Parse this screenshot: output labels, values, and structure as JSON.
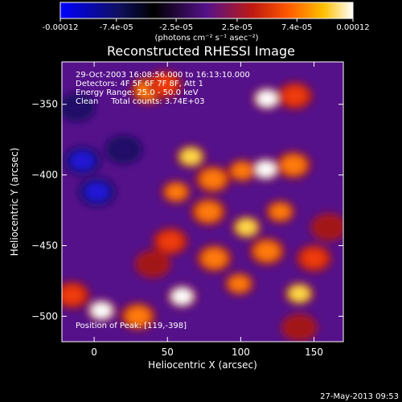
{
  "colorbar": {
    "ticks": [
      "-0.00012",
      "-7.4e-05",
      "-2.5e-05",
      "2.5e-05",
      "7.4e-05",
      "0.00012"
    ],
    "tick_values": [
      -0.00012,
      -7.4e-05,
      -2.5e-05,
      2.5e-05,
      7.4e-05,
      0.00012
    ],
    "range": [
      -0.00012,
      0.00012
    ],
    "units": "(photons cm⁻² s⁻¹ asec⁻²)",
    "colors": [
      "#0000ff",
      "#101060",
      "#000000",
      "#55118a",
      "#c01a10",
      "#ff5a00",
      "#ffc000",
      "#ffffff"
    ]
  },
  "chart_data": {
    "type": "heatmap",
    "title": "Reconstructed RHESSI Image",
    "xlabel": "Heliocentric X (arcsec)",
    "ylabel": "Heliocentric Y (arcsec)",
    "xlim": [
      -22,
      170
    ],
    "ylim": [
      -518,
      -320
    ],
    "xticks": [
      0,
      50,
      100,
      150
    ],
    "yticks": [
      -500,
      -450,
      -400,
      -350
    ],
    "annotations": [
      "29-Oct-2003 16:08:56.000 to 16:13:10.000",
      "Detectors: 4F 5F 6F 7F 8F, Att 1",
      "Energy Range: 25.0 - 50.0 keV",
      "Clean     Total counts: 3.74E+03"
    ],
    "position_label": "Position of Peak: [119,-398]",
    "peak": [
      119,
      -398
    ],
    "sources": [
      {
        "x": 118,
        "y": -346,
        "value": 1.0
      },
      {
        "x": 137,
        "y": -344,
        "value": 0.6
      },
      {
        "x": 37,
        "y": -340,
        "value": 0.7
      },
      {
        "x": 48,
        "y": -336,
        "value": 0.6
      },
      {
        "x": 117,
        "y": -396,
        "value": 1.0
      },
      {
        "x": 101,
        "y": -397,
        "value": 0.8
      },
      {
        "x": 136,
        "y": -393,
        "value": 0.7
      },
      {
        "x": 66,
        "y": -387,
        "value": 0.85
      },
      {
        "x": 56,
        "y": -412,
        "value": 0.8
      },
      {
        "x": 81,
        "y": -403,
        "value": 0.7
      },
      {
        "x": 104,
        "y": -437,
        "value": 0.85
      },
      {
        "x": 127,
        "y": -426,
        "value": 0.8
      },
      {
        "x": 78,
        "y": -426,
        "value": 0.7
      },
      {
        "x": 52,
        "y": -447,
        "value": 0.65
      },
      {
        "x": 82,
        "y": -459,
        "value": 0.75
      },
      {
        "x": 60,
        "y": -486,
        "value": 0.95
      },
      {
        "x": 99,
        "y": -477,
        "value": 0.8
      },
      {
        "x": 118,
        "y": -454,
        "value": 0.7
      },
      {
        "x": 140,
        "y": -484,
        "value": 0.85
      },
      {
        "x": 150,
        "y": -459,
        "value": 0.6
      },
      {
        "x": 5,
        "y": -496,
        "value": 0.95
      },
      {
        "x": 30,
        "y": -500,
        "value": 0.75
      },
      {
        "x": -15,
        "y": -485,
        "value": 0.6
      },
      {
        "x": 140,
        "y": -508,
        "value": 0.45
      },
      {
        "x": 40,
        "y": -463,
        "value": 0.35
      },
      {
        "x": 160,
        "y": -437,
        "value": 0.35
      },
      {
        "x": -8,
        "y": -390,
        "value": -0.5
      },
      {
        "x": 2,
        "y": -412,
        "value": -0.45
      },
      {
        "x": -12,
        "y": -352,
        "value": -0.35
      },
      {
        "x": 20,
        "y": -382,
        "value": -0.35
      }
    ],
    "grid": false,
    "date_stamp": "27-May-2013 09:53"
  }
}
